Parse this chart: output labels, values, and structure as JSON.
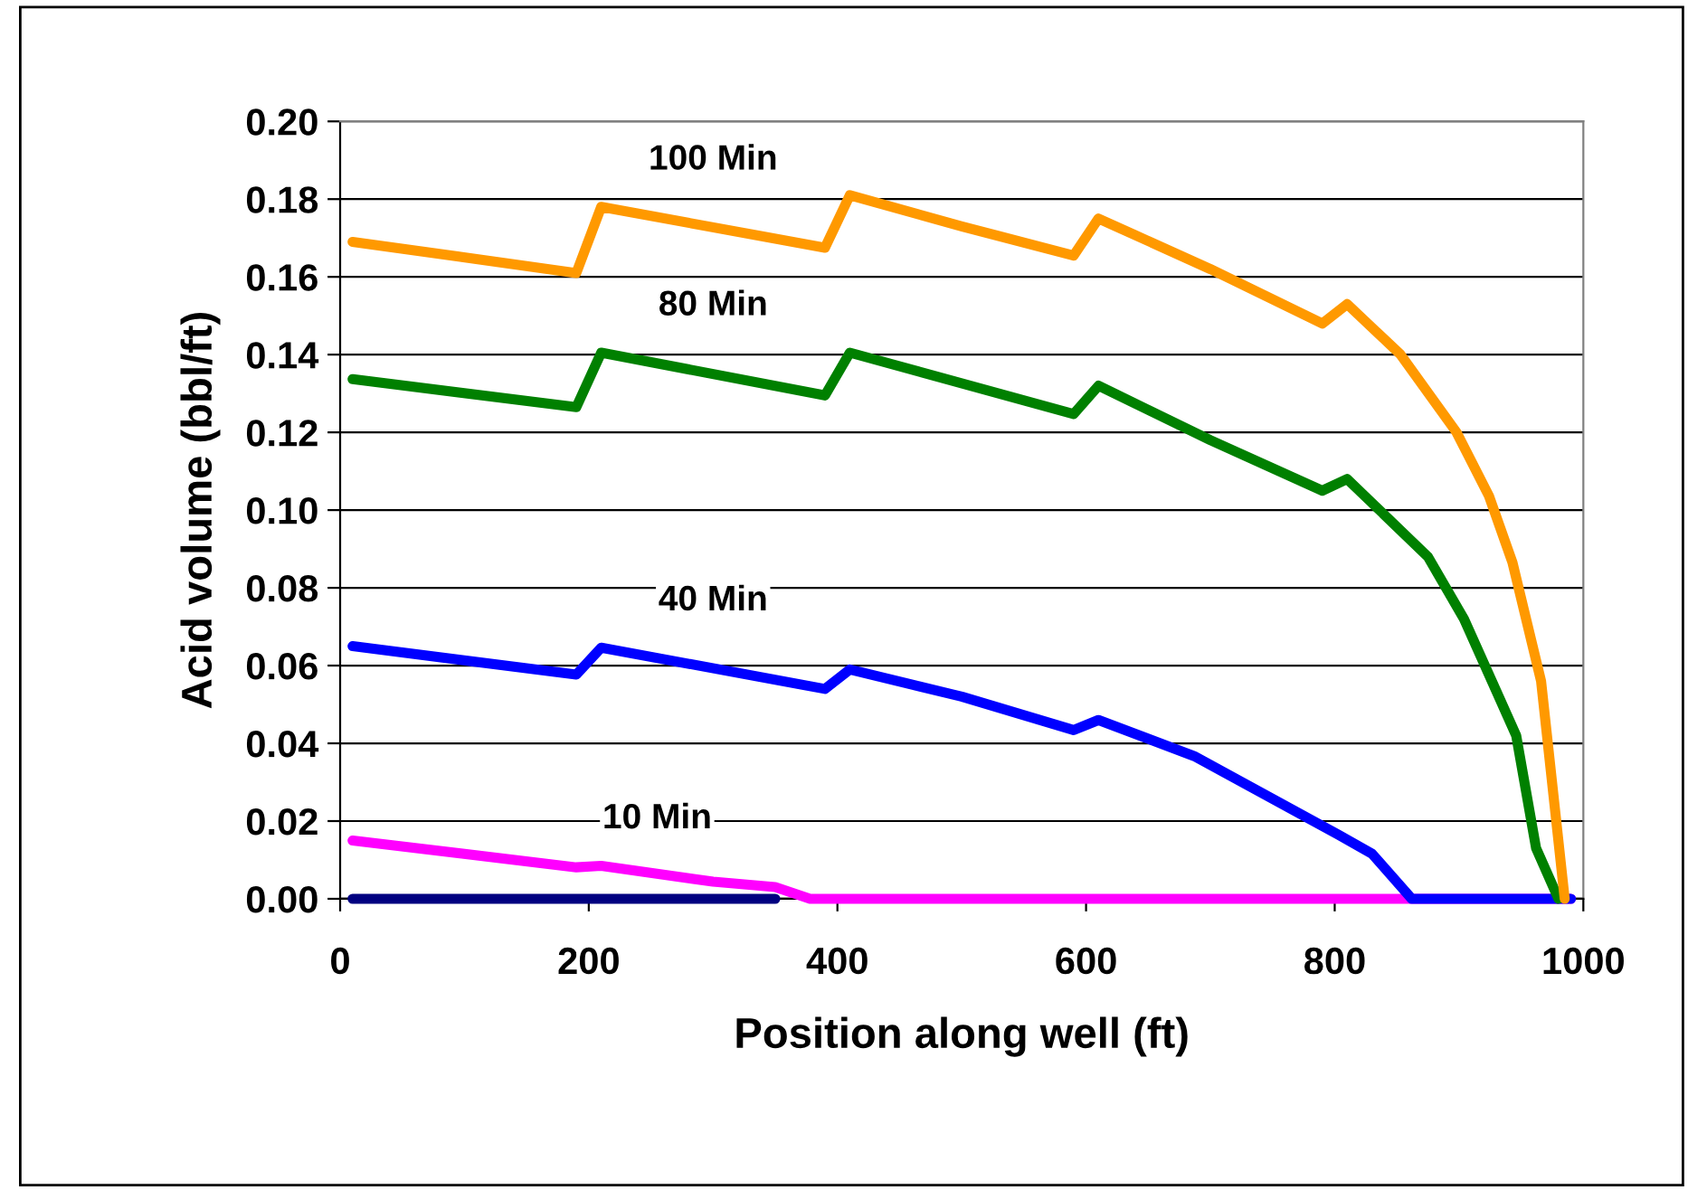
{
  "chart_data": {
    "type": "line",
    "xlabel": "Position along well (ft)",
    "ylabel": "Acid volume (bbl/ft)",
    "xlim": [
      0,
      1000
    ],
    "xticks": [
      0,
      200,
      400,
      600,
      800,
      1000
    ],
    "ylim": [
      0,
      0.2
    ],
    "yticks": [
      {
        "value": 0,
        "label": "0.00"
      },
      {
        "value": 0.02,
        "label": "0.02"
      },
      {
        "value": 0.04,
        "label": "0.04"
      },
      {
        "value": 0.06,
        "label": "0.06"
      },
      {
        "value": 0.08,
        "label": "0.08"
      },
      {
        "value": 0.1,
        "label": "0.10"
      },
      {
        "value": 0.12,
        "label": "0.12"
      },
      {
        "value": 0.14,
        "label": "0.14"
      },
      {
        "value": 0.16,
        "label": "0.16"
      },
      {
        "value": 0.18,
        "label": "0.18"
      },
      {
        "value": 0.2,
        "label": "0.20"
      }
    ],
    "grid": "y",
    "legend": false,
    "marker": "none",
    "line_style": "solid",
    "series": [
      {
        "color": "#000080",
        "x": [
          10,
          350
        ],
        "values": [
          0,
          0
        ]
      },
      {
        "name": "10 Min",
        "color": "#ff00ff",
        "x": [
          10,
          190,
          210,
          300,
          350,
          378,
          990
        ],
        "values": [
          0.015,
          0.0081,
          0.0085,
          0.0044,
          0.003,
          0,
          0
        ]
      },
      {
        "name": "40 Min",
        "color": "#0000ff",
        "x": [
          10,
          190,
          210,
          390,
          410,
          500,
          590,
          610,
          687,
          803,
          830,
          862,
          990
        ],
        "values": [
          0.065,
          0.0577,
          0.0646,
          0.054,
          0.059,
          0.052,
          0.0434,
          0.046,
          0.0367,
          0.0165,
          0.0116,
          0,
          0
        ]
      },
      {
        "name": "80 Min",
        "color": "#008000",
        "x": [
          10,
          190,
          210,
          390,
          410,
          590,
          610,
          700,
          790,
          810,
          875,
          904,
          946,
          962,
          980
        ],
        "values": [
          0.1337,
          0.1265,
          0.1405,
          0.1295,
          0.1405,
          0.1247,
          0.132,
          0.118,
          0.105,
          0.108,
          0.088,
          0.072,
          0.042,
          0.013,
          0
        ]
      },
      {
        "name": "100 Min",
        "color": "#ff9900",
        "x": [
          10,
          190,
          210,
          390,
          410,
          500,
          590,
          610,
          700,
          790,
          810,
          853,
          898,
          924,
          943,
          966,
          985
        ],
        "values": [
          0.169,
          0.161,
          0.178,
          0.1675,
          0.181,
          0.173,
          0.1655,
          0.175,
          0.162,
          0.148,
          0.153,
          0.14,
          0.12,
          0.1037,
          0.0865,
          0.056,
          0
        ]
      }
    ]
  }
}
